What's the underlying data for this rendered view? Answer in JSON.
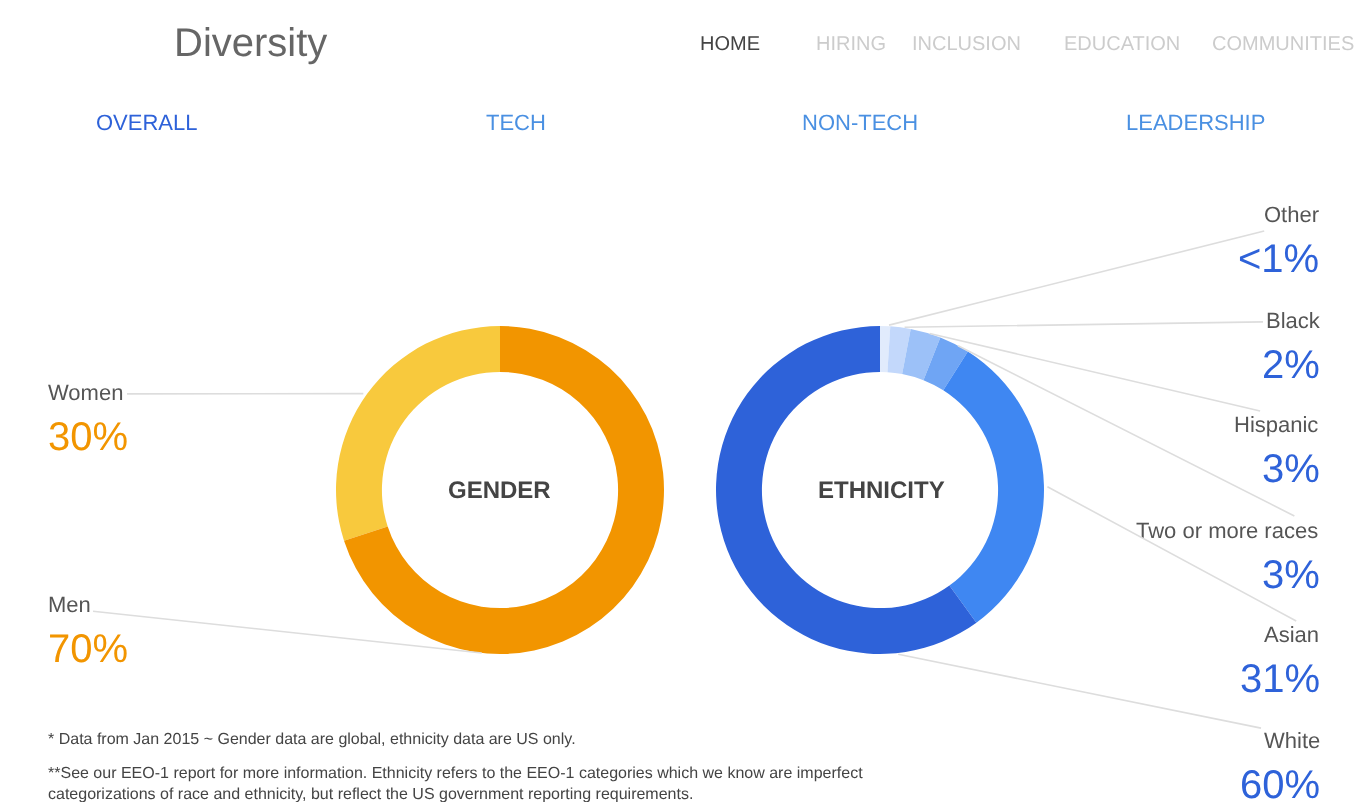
{
  "chart_data": [
    {
      "type": "donut",
      "title": "GENDER",
      "categories": [
        "Women",
        "Men"
      ],
      "values": [
        30,
        70
      ],
      "value_labels": [
        "30%",
        "70%"
      ],
      "colors": [
        "#f8c93d",
        "#f29500"
      ],
      "annotations": [
        "Diversity",
        "HOME",
        "HIRING",
        "INCLUSION",
        "EDUCATION",
        "COMMUNITIES",
        "OVERALL",
        "TECH",
        "NON-TECH",
        "LEADERSHIP",
        "* Data from Jan 2015 ~ Gender data are global, ethnicity data are US only.",
        "**See our EEO-1 report for more information. Ethnicity refers to the EEO-1 categories which we know are imperfect\ncategorizations of race and ethnicity, but reflect the US government reporting requirements."
      ]
    },
    {
      "type": "donut",
      "title": "ETHNICITY",
      "categories": [
        "Other",
        "Black",
        "Hispanic",
        "Two or more races",
        "Asian",
        "White"
      ],
      "values": [
        1,
        2,
        3,
        3,
        31,
        60
      ],
      "value_labels": [
        "<1%",
        "2%",
        "3%",
        "3%",
        "31%",
        "60%"
      ],
      "colors": [
        "#e1ebfc",
        "#c3d8fb",
        "#9cc1f8",
        "#6fa5f4",
        "#3f87f2",
        "#2e62d9"
      ]
    }
  ]
}
